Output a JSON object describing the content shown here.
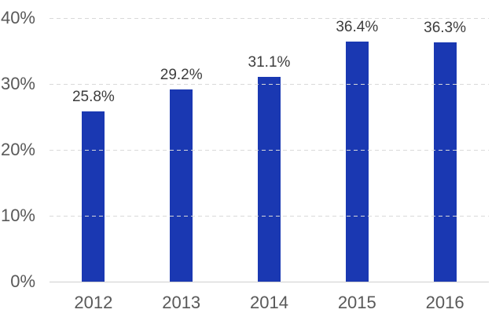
{
  "chart_data": {
    "type": "bar",
    "title": "",
    "xlabel": "",
    "ylabel": "",
    "categories": [
      "2012",
      "2013",
      "2014",
      "2015",
      "2016"
    ],
    "values": [
      25.8,
      29.2,
      31.1,
      36.4,
      36.3
    ],
    "value_labels": [
      "25.8%",
      "29.2%",
      "31.1%",
      "36.4%",
      "36.3%"
    ],
    "ylim": [
      0,
      40
    ],
    "yticks": [
      0,
      10,
      20,
      30,
      40
    ],
    "ytick_labels": [
      "0%",
      "10%",
      "20%",
      "30%",
      "40%"
    ],
    "grid": "horizontal-dashed",
    "legend": "none",
    "colors": {
      "bar": "#1a38b2",
      "gridline": "#d9d9d9",
      "baseline": "#cfcfcf",
      "axis_labels": "#595959",
      "value_labels": "#3d3d3d",
      "background": "#ffffff"
    }
  }
}
